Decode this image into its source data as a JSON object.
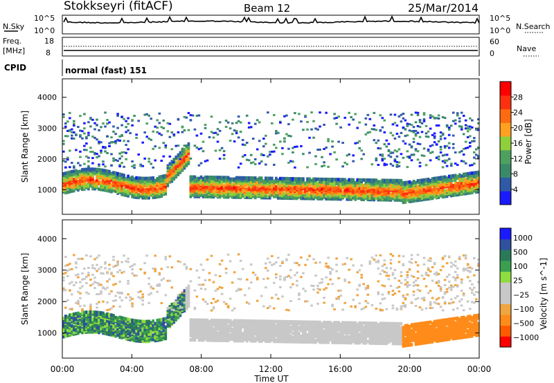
{
  "header": {
    "station": "Stokkseyri (fitACF)",
    "beam": "Beam 12",
    "date": "25/Mar/2014"
  },
  "noise_panel": {
    "left_label": "N.Sky",
    "right_label": "N.Search",
    "left_ticks": [
      "10^5",
      "10^0"
    ],
    "right_ticks": [
      "10^5",
      "10^0"
    ]
  },
  "freq_panel": {
    "left_label_1": "Freq.",
    "left_label_2": "[MHz]",
    "right_label": "Nave",
    "left_ticks": [
      "18",
      "8"
    ],
    "right_ticks": [
      "60",
      "0"
    ]
  },
  "cpid": {
    "label": "CPID",
    "value": "normal (fast) 151"
  },
  "colors": {
    "power_bar": [
      "#1a1aff",
      "#2f5aa8",
      "#3a8a6a",
      "#4ea060",
      "#8fcf3a",
      "#ffa020",
      "#ff6a10",
      "#ff3010",
      "#ff0000"
    ],
    "velocity_bar": [
      "#ff0000",
      "#ff5a00",
      "#ff8c1a",
      "#f0a540",
      "#c8c8c8",
      "#c8c8c8",
      "#8fdc40",
      "#3aa050",
      "#2a7a5a",
      "#3050a0",
      "#1a1aff"
    ]
  },
  "chart_data": [
    {
      "type": "heatmap",
      "title": "Power",
      "xlabel": "Time UT",
      "ylabel": "Slant Range [km]",
      "x_ticks": [
        "00:00",
        "04:00",
        "08:00",
        "12:00",
        "16:00",
        "20:00",
        "00:00"
      ],
      "y_ticks": [
        1000,
        2000,
        3000,
        4000
      ],
      "ylim": [
        200,
        4600
      ],
      "colorbar_label": "Power [dB]",
      "colorbar_ticks": [
        4,
        8,
        12,
        16,
        20,
        24,
        28
      ],
      "colorbar_range": [
        0,
        32
      ]
    },
    {
      "type": "heatmap",
      "title": "Velocity",
      "xlabel": "Time UT",
      "ylabel": "Slant Range [km]",
      "x_ticks": [
        "00:00",
        "04:00",
        "08:00",
        "12:00",
        "16:00",
        "20:00",
        "00:00"
      ],
      "y_ticks": [
        1000,
        2000,
        3000,
        4000
      ],
      "ylim": [
        200,
        4600
      ],
      "colorbar_label": "Velocity [m s^-1]",
      "colorbar_ticks": [
        1000,
        500,
        100,
        25,
        -25,
        -100,
        -500,
        -1000
      ]
    }
  ]
}
